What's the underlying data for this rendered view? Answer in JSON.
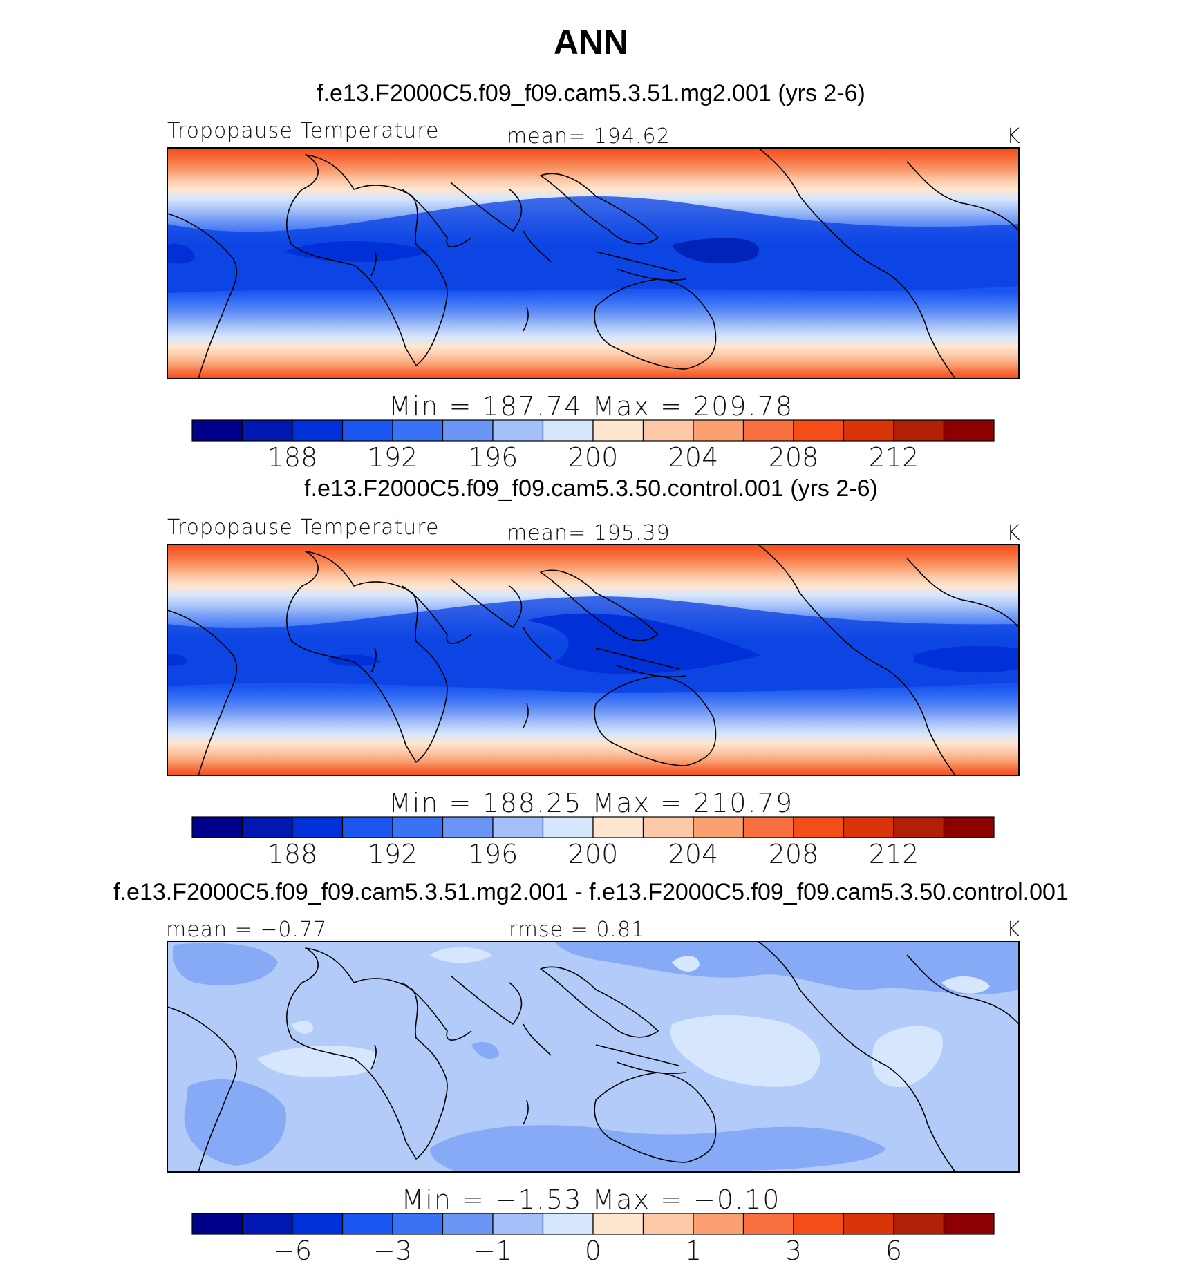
{
  "figure": {
    "title": "ANN",
    "panels": [
      {
        "title": "f.e13.F2000C5.f09_f09.cam5.3.51.mg2.001 (yrs 2-6)",
        "left_label": "Tropopause  Temperature",
        "center_label": "mean=  194.62",
        "right_label": "K",
        "stats_text": "Min  =  187.74  Max  =  209.78",
        "colorbar": {
          "colors": [
            "#00008b",
            "#0018b0",
            "#0030d8",
            "#1a55f0",
            "#3a72f5",
            "#6a95f5",
            "#a4c0f8",
            "#d6e6fc",
            "#fee6d0",
            "#fcc8a8",
            "#f99f70",
            "#f87040",
            "#f54d18",
            "#da3508",
            "#b02008",
            "#8b0000"
          ],
          "tick_labels": [
            "188",
            "192",
            "196",
            "200",
            "204",
            "208",
            "212"
          ]
        }
      },
      {
        "title": "f.e13.F2000C5.f09_f09.cam5.3.50.control.001 (yrs 2-6)",
        "left_label": "Tropopause  Temperature",
        "center_label": "mean=  195.39",
        "right_label": "K",
        "stats_text": "Min  =  188.25  Max  =  210.79",
        "colorbar": {
          "colors": [
            "#00008b",
            "#0018b0",
            "#0030d8",
            "#1a55f0",
            "#3a72f5",
            "#6a95f5",
            "#a4c0f8",
            "#d6e6fc",
            "#fee6d0",
            "#fcc8a8",
            "#f99f70",
            "#f87040",
            "#f54d18",
            "#da3508",
            "#b02008",
            "#8b0000"
          ],
          "tick_labels": [
            "188",
            "192",
            "196",
            "200",
            "204",
            "208",
            "212"
          ]
        }
      },
      {
        "title": "f.e13.F2000C5.f09_f09.cam5.3.51.mg2.001 - f.e13.F2000C5.f09_f09.cam5.3.50.control.001",
        "left_label": "mean  =    −0.77",
        "center_label": "rmse  =     0.81",
        "right_label": "K",
        "stats_text": "Min  =   −1.53  Max  =   −0.10",
        "colorbar": {
          "colors": [
            "#00008b",
            "#0018b0",
            "#0030d8",
            "#1a55f0",
            "#3a72f5",
            "#6a95f5",
            "#a4c0f8",
            "#d6e6fc",
            "#fee6d0",
            "#fcc8a8",
            "#f99f70",
            "#f87040",
            "#f54d18",
            "#da3508",
            "#b02008",
            "#8b0000"
          ],
          "tick_labels": [
            "−6",
            "−3",
            "−1",
            "0",
            "1",
            "3",
            "6"
          ]
        }
      }
    ]
  },
  "colors": {
    "diff_background": "#b2cbf8",
    "diff_darker": "#86aaf6",
    "diff_lighter": "#d6e6fc",
    "coast": "#000000"
  }
}
